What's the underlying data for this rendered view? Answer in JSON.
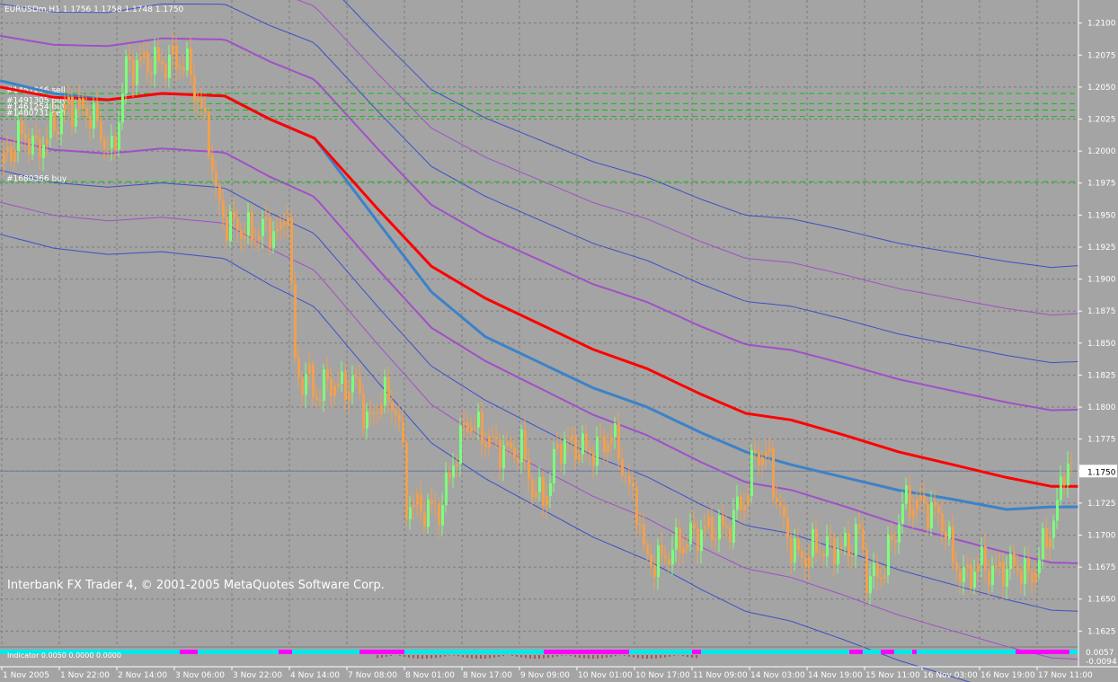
{
  "header": {
    "symbol_line": "EURUSDm,H1  1.1756  1.1758  1.1748  1.1750"
  },
  "copyright": "Interbank FX Trader 4, © 2001-2005 MetaQuotes Software Corp.",
  "indicator_header": "Indicator  0.0050  0.0000  0.0000",
  "price_axis": {
    "ticks": [
      "1.2100",
      "1.2075",
      "1.2050",
      "1.2025",
      "1.2000",
      "1.1975",
      "1.1950",
      "1.1925",
      "1.1900",
      "1.1875",
      "1.1850",
      "1.1825",
      "1.1800",
      "1.1775",
      "1.1750",
      "1.1725",
      "1.1700",
      "1.1675",
      "1.1650",
      "1.1625"
    ],
    "current_price": "1.1750",
    "subwindow_top": "0.0057",
    "subwindow_bottom": "-0.0094"
  },
  "time_axis": {
    "ticks": [
      "1 Nov 2005",
      "1 Nov 22:00",
      "2 Nov 14:00",
      "3 Nov 06:00",
      "3 Nov 22:00",
      "4 Nov 14:00",
      "7 Nov 08:00",
      "8 Nov 01:00",
      "8 Nov 17:00",
      "9 Nov 09:00",
      "10 Nov 01:00",
      "10 Nov 17:00",
      "11 Nov 09:00",
      "14 Nov 03:00",
      "14 Nov 19:00",
      "15 Nov 11:00",
      "16 Nov 03:00",
      "16 Nov 19:00",
      "17 Nov 11:00"
    ]
  },
  "order_labels": [
    {
      "text": "#1451266 sell",
      "price": 1.2045
    },
    {
      "text": "#1491305 buy",
      "price": 1.2037
    },
    {
      "text": "#1461254 buy",
      "price": 1.2032
    },
    {
      "text": "#1480731 sell",
      "price": 1.2027
    },
    {
      "text": "#1680366 buy",
      "price": 1.1976
    }
  ],
  "colors": {
    "background": "#a4a4a4",
    "grid": "#7c7c7c",
    "candle": "#f0a050",
    "candle_up": "#7cff7c",
    "ma_red": "#ff0000",
    "ma_blue": "#3c82c8",
    "band_blue": "#3c50c8",
    "band_violet": "#a050c8",
    "order_line": "#00c800",
    "histo_cyan": "#00e8e8",
    "histo_magenta": "#ff00ff"
  },
  "chart_data": {
    "type": "candlestick",
    "symbol": "EURUSDm",
    "timeframe": "H1",
    "ylim": [
      1.1614,
      1.2118
    ],
    "last_price": 1.175,
    "close_path": [
      [
        0,
        1.199
      ],
      [
        25,
        1.2015
      ],
      [
        40,
        1.2
      ],
      [
        60,
        1.202
      ],
      [
        75,
        1.2035
      ],
      [
        100,
        1.203
      ],
      [
        115,
        1.201
      ],
      [
        125,
        1.1995
      ],
      [
        140,
        1.2065
      ],
      [
        160,
        1.207
      ],
      [
        180,
        1.2068
      ],
      [
        195,
        1.2072
      ],
      [
        210,
        1.2065
      ],
      [
        222,
        1.2035
      ],
      [
        232,
        1.201
      ],
      [
        240,
        1.1965
      ],
      [
        250,
        1.1945
      ],
      [
        265,
        1.194
      ],
      [
        280,
        1.1935
      ],
      [
        295,
        1.194
      ],
      [
        312,
        1.1935
      ],
      [
        320,
        1.196
      ],
      [
        326,
        1.185
      ],
      [
        330,
        1.182
      ],
      [
        342,
        1.1825
      ],
      [
        350,
        1.1808
      ],
      [
        365,
        1.182
      ],
      [
        380,
        1.1815
      ],
      [
        395,
        1.182
      ],
      [
        410,
        1.1785
      ],
      [
        425,
        1.181
      ],
      [
        440,
        1.18
      ],
      [
        447,
        1.177
      ],
      [
        452,
        1.1725
      ],
      [
        470,
        1.172
      ],
      [
        490,
        1.172
      ],
      [
        505,
        1.176
      ],
      [
        520,
        1.179
      ],
      [
        535,
        1.178
      ],
      [
        550,
        1.177
      ],
      [
        565,
        1.1765
      ],
      [
        580,
        1.1768
      ],
      [
        595,
        1.173
      ],
      [
        610,
        1.1735
      ],
      [
        620,
        1.177
      ],
      [
        640,
        1.177
      ],
      [
        655,
        1.1765
      ],
      [
        670,
        1.177
      ],
      [
        680,
        1.178
      ],
      [
        690,
        1.176
      ],
      [
        700,
        1.1735
      ],
      [
        710,
        1.172
      ],
      [
        717,
        1.168
      ],
      [
        735,
        1.168
      ],
      [
        750,
        1.169
      ],
      [
        770,
        1.17
      ],
      [
        790,
        1.1705
      ],
      [
        810,
        1.1705
      ],
      [
        820,
        1.172
      ],
      [
        830,
        1.173
      ],
      [
        840,
        1.1765
      ],
      [
        855,
        1.176
      ],
      [
        865,
        1.1725
      ],
      [
        875,
        1.17
      ],
      [
        890,
        1.168
      ],
      [
        905,
        1.169
      ],
      [
        925,
        1.169
      ],
      [
        945,
        1.169
      ],
      [
        955,
        1.1705
      ],
      [
        965,
        1.1665
      ],
      [
        980,
        1.167
      ],
      [
        995,
        1.17
      ],
      [
        1005,
        1.1725
      ],
      [
        1020,
        1.1725
      ],
      [
        1035,
        1.172
      ],
      [
        1050,
        1.171
      ],
      [
        1060,
        1.168
      ],
      [
        1075,
        1.1665
      ],
      [
        1090,
        1.168
      ],
      [
        1105,
        1.167
      ],
      [
        1120,
        1.1675
      ],
      [
        1135,
        1.1675
      ],
      [
        1145,
        1.1665
      ],
      [
        1155,
        1.168
      ],
      [
        1165,
        1.17
      ],
      [
        1175,
        1.1715
      ],
      [
        1183,
        1.1755
      ],
      [
        1190,
        1.1752
      ],
      [
        1195,
        1.175
      ]
    ],
    "ma_red": [
      [
        0,
        1.205
      ],
      [
        60,
        1.2042
      ],
      [
        120,
        1.204
      ],
      [
        180,
        1.2045
      ],
      [
        250,
        1.2043
      ],
      [
        300,
        1.2025
      ],
      [
        350,
        1.201
      ],
      [
        420,
        1.1955
      ],
      [
        480,
        1.191
      ],
      [
        540,
        1.1885
      ],
      [
        600,
        1.1865
      ],
      [
        660,
        1.1845
      ],
      [
        720,
        1.183
      ],
      [
        780,
        1.181
      ],
      [
        830,
        1.1795
      ],
      [
        880,
        1.179
      ],
      [
        940,
        1.1778
      ],
      [
        1000,
        1.1765
      ],
      [
        1060,
        1.1755
      ],
      [
        1120,
        1.1745
      ],
      [
        1170,
        1.1738
      ],
      [
        1200,
        1.1738
      ]
    ],
    "ma_blue": [
      [
        0,
        1.2055
      ],
      [
        60,
        1.2045
      ],
      [
        120,
        1.204
      ],
      [
        180,
        1.2045
      ],
      [
        250,
        1.2043
      ],
      [
        300,
        1.2025
      ],
      [
        350,
        1.201
      ],
      [
        420,
        1.1945
      ],
      [
        480,
        1.189
      ],
      [
        540,
        1.1855
      ],
      [
        600,
        1.1835
      ],
      [
        660,
        1.1815
      ],
      [
        720,
        1.18
      ],
      [
        780,
        1.178
      ],
      [
        830,
        1.1765
      ],
      [
        880,
        1.1755
      ],
      [
        940,
        1.1745
      ],
      [
        1000,
        1.1735
      ],
      [
        1060,
        1.1728
      ],
      [
        1120,
        1.172
      ],
      [
        1170,
        1.1722
      ],
      [
        1200,
        1.1722
      ]
    ],
    "bands": [
      {
        "color": "band_blue",
        "shape": "upper",
        "offset": 0.0115
      },
      {
        "color": "band_violet",
        "shape": "upper",
        "offset": 0.009
      },
      {
        "color": "band_blue",
        "shape": "upper",
        "offset": 0.0065
      },
      {
        "color": "band_violet",
        "shape": "upper",
        "offset": 0.004
      },
      {
        "color": "band_violet",
        "shape": "lower",
        "offset": 0.004
      },
      {
        "color": "band_blue",
        "shape": "lower",
        "offset": 0.0065
      },
      {
        "color": "band_violet",
        "shape": "lower",
        "offset": 0.009
      },
      {
        "color": "band_blue",
        "shape": "lower",
        "offset": 0.0115
      }
    ],
    "histogram": {
      "pattern": "mc",
      "segments": [
        [
          "c",
          0,
          200
        ],
        [
          "m",
          200,
          220
        ],
        [
          "c",
          220,
          310
        ],
        [
          "m",
          310,
          325
        ],
        [
          "c",
          325,
          400
        ],
        [
          "m",
          400,
          450
        ],
        [
          "c",
          450,
          605
        ],
        [
          "m",
          605,
          700
        ],
        [
          "c",
          700,
          770
        ],
        [
          "m",
          770,
          780
        ],
        [
          "c",
          780,
          945
        ],
        [
          "m",
          945,
          960
        ],
        [
          "c",
          960,
          980
        ],
        [
          "m",
          980,
          995
        ],
        [
          "c",
          995,
          1015
        ],
        [
          "m",
          1015,
          1020
        ],
        [
          "c",
          1020,
          1130
        ],
        [
          "m",
          1130,
          1190
        ],
        [
          "c",
          1190,
          1200
        ]
      ]
    }
  }
}
